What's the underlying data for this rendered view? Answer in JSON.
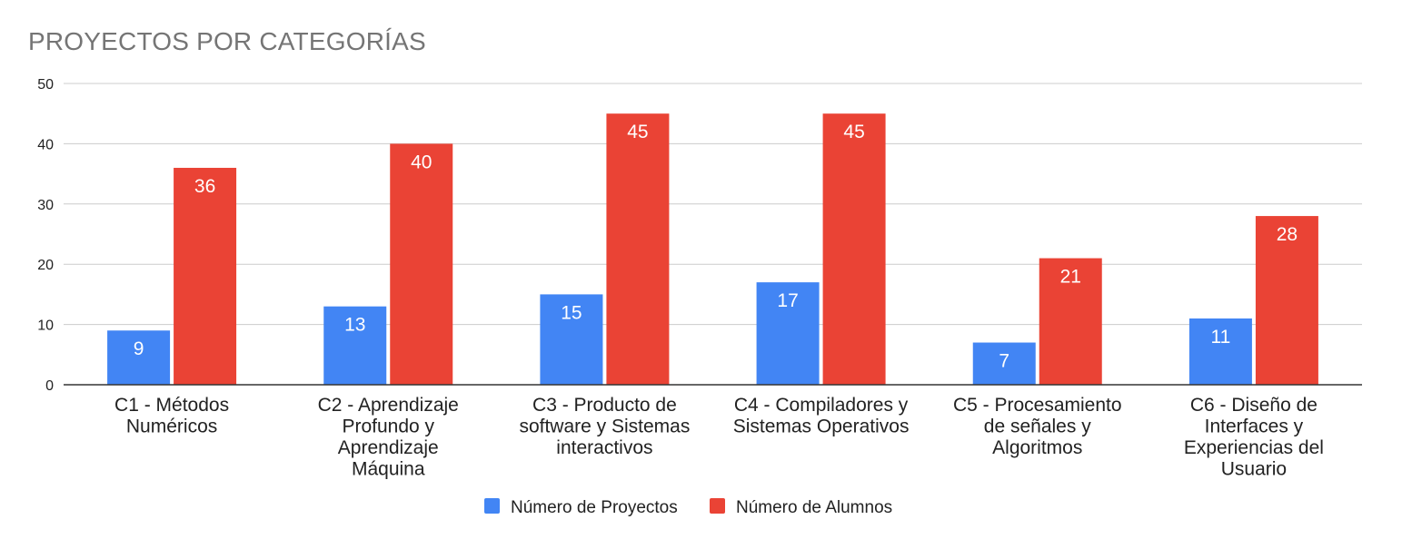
{
  "chart_data": {
    "type": "bar",
    "title": "PROYECTOS POR CATEGORÍAS",
    "xlabel": "",
    "ylabel": "",
    "ylim": [
      0,
      50
    ],
    "yticks": [
      "0",
      "10",
      "20",
      "30",
      "40",
      "50"
    ],
    "grid": true,
    "legend_position": "bottom",
    "categories": [
      [
        "C1 - Métodos",
        "Numéricos"
      ],
      [
        "C2 - Aprendizaje",
        "Profundo y",
        "Aprendizaje",
        "Máquina"
      ],
      [
        "C3 - Producto de",
        "software y Sistemas",
        "interactivos"
      ],
      [
        "C4 - Compiladores y",
        "Sistemas Operativos"
      ],
      [
        "C5 - Procesamiento",
        "de señales y",
        "Algoritmos"
      ],
      [
        "C6 - Diseño de",
        "Interfaces y",
        "Experiencias del",
        "Usuario"
      ]
    ],
    "series": [
      {
        "name": "Número de Proyectos",
        "color": "#4285f4",
        "values": [
          9,
          13,
          15,
          17,
          7,
          11
        ]
      },
      {
        "name": "Número de Alumnos",
        "color": "#ea4335",
        "values": [
          36,
          40,
          45,
          45,
          21,
          28
        ]
      }
    ]
  }
}
